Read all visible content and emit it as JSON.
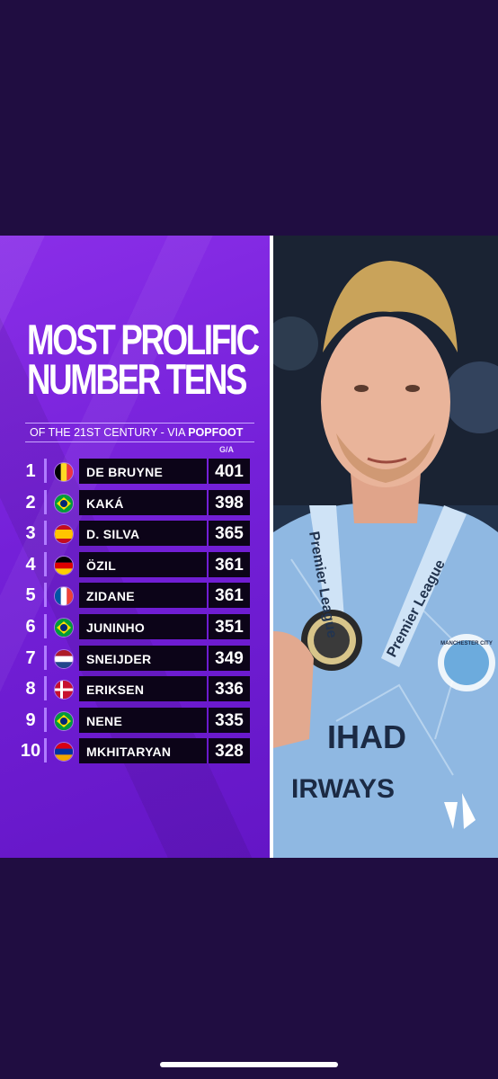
{
  "graphic": {
    "title_line1": "MOST PROLIFIC",
    "title_line2": "NUMBER TENS",
    "subtitle_prefix": "OF THE 21ST CENTURY - VIA ",
    "subtitle_source": "POPFOOT",
    "column_label": "G/A",
    "rows": [
      {
        "rank": "1",
        "name": "DE BRUYNE",
        "value": "401",
        "flag": "belgium-flag-icon"
      },
      {
        "rank": "2",
        "name": "KAKÁ",
        "value": "398",
        "flag": "brazil-flag-icon"
      },
      {
        "rank": "3",
        "name": "D. SILVA",
        "value": "365",
        "flag": "spain-flag-icon"
      },
      {
        "rank": "4",
        "name": "ÖZIL",
        "value": "361",
        "flag": "germany-flag-icon"
      },
      {
        "rank": "5",
        "name": "ZIDANE",
        "value": "361",
        "flag": "france-flag-icon"
      },
      {
        "rank": "6",
        "name": "JUNINHO",
        "value": "351",
        "flag": "brazil-flag-icon"
      },
      {
        "rank": "7",
        "name": "SNEIJDER",
        "value": "349",
        "flag": "netherlands-flag-icon"
      },
      {
        "rank": "8",
        "name": "ERIKSEN",
        "value": "336",
        "flag": "denmark-flag-icon"
      },
      {
        "rank": "9",
        "name": "NENE",
        "value": "335",
        "flag": "brazil-flag-icon"
      },
      {
        "rank": "10",
        "name": "MKHITARYAN",
        "value": "328",
        "flag": "armenia-flag-icon"
      }
    ]
  },
  "photo": {
    "lanyard_text": "Premier League",
    "shirt_text_1": "IHAD",
    "shirt_text_2": "IRWAYS",
    "crest_text": "MANCHESTER CITY"
  },
  "colors": {
    "page_bg": "#200d41",
    "panel_purple": "#7420d8",
    "row_bg": "#0c0418",
    "shirt_blue": "#8fb8e2"
  }
}
